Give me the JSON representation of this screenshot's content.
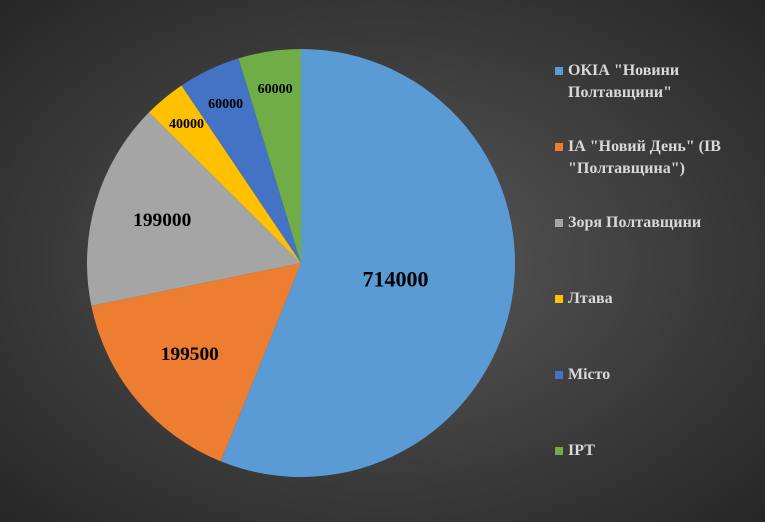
{
  "chart_data": {
    "type": "pie",
    "categories": [
      "ОКІА \"Новини Полтавщини\"",
      "ІА \"Новий День\" (ІВ \"Полтавщина\")",
      "Зоря Полтавщини",
      "Лтава",
      "Місто",
      "ІРТ"
    ],
    "values": [
      714000,
      199500,
      199000,
      40000,
      60000,
      60000
    ],
    "colors": [
      "#5b9bd5",
      "#ed7d31",
      "#a5a5a5",
      "#ffc000",
      "#4472c4",
      "#70ad47"
    ],
    "legend": "right"
  }
}
